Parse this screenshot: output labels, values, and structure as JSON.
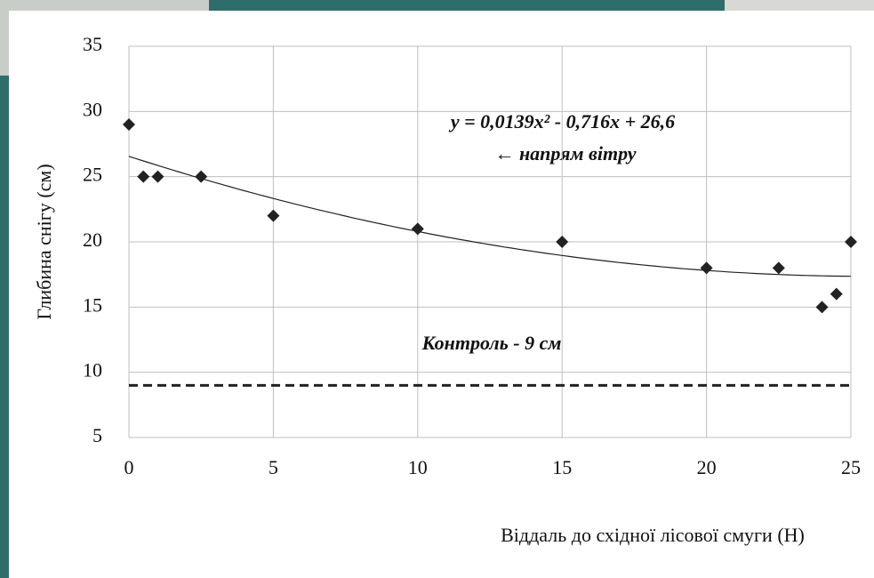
{
  "chart_data": {
    "type": "scatter",
    "x_label": "Віддаль до східної лісової смуги (Н)",
    "y_label": "Глибина снігу (см)",
    "annotations": [
      "y = 0,0139x² - 0,716x + 26,6",
      "← напрям вітру"
    ],
    "x": [
      0,
      0.5,
      1,
      2.5,
      5,
      10,
      15,
      20,
      22.5,
      24,
      24.5,
      25
    ],
    "series": [
      {
        "color": "#222222",
        "values": [
          29,
          25,
          25,
          25,
          22,
          21,
          20,
          18,
          18,
          15,
          16,
          20
        ]
      }
    ],
    "trendline": "poly2",
    "reference_lines": [
      {
        "value": 9,
        "label": "Контроль - 9 см"
      }
    ],
    "xlim": [
      0,
      25
    ],
    "xticks": [
      0,
      5,
      10,
      15,
      20,
      25
    ],
    "ylim": [
      5,
      35
    ],
    "yticks": [
      5,
      10,
      15,
      20,
      25,
      30,
      35
    ],
    "grid": true
  }
}
